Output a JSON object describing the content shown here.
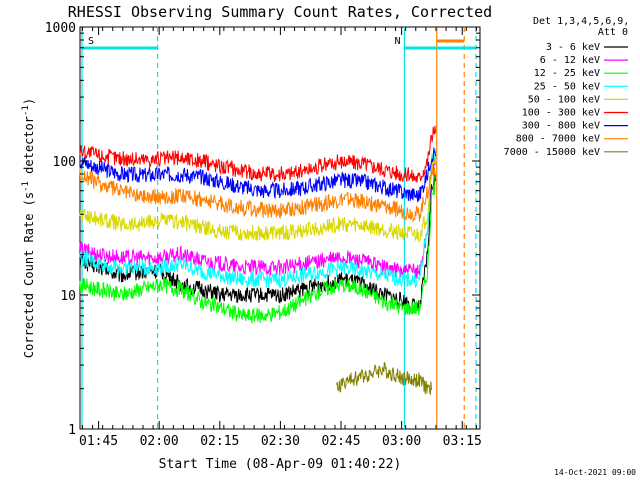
{
  "chart_data": {
    "type": "line",
    "title": "RHESSI Observing Summary Count Rates, Corrected",
    "xlabel": "Start Time (08-Apr-09 01:40:22)",
    "ylabel_main": "Corrected Count Rate (s",
    "ylabel_sup1": "-1",
    "ylabel_mid": " detector",
    "ylabel_sup2": "-1",
    "ylabel_end": ")",
    "y_scale": "log",
    "ylim": [
      1,
      1000
    ],
    "xlim_minutes": [
      0,
      99
    ],
    "x_ticks": [
      {
        "label": "01:45",
        "min": 4.6
      },
      {
        "label": "02:00",
        "min": 19.6
      },
      {
        "label": "02:15",
        "min": 34.6
      },
      {
        "label": "02:30",
        "min": 49.6
      },
      {
        "label": "02:45",
        "min": 64.6
      },
      {
        "label": "03:00",
        "min": 79.6
      },
      {
        "label": "03:15",
        "min": 94.6
      }
    ],
    "y_ticks": [
      {
        "label": "1",
        "val": 1
      },
      {
        "label": "10",
        "val": 10
      },
      {
        "label": "100",
        "val": 100
      },
      {
        "label": "1000",
        "val": 1000
      }
    ],
    "legend_header": [
      "Det 1,3,4,5,6,9,",
      "Att 0"
    ],
    "legend_position": "right",
    "timestamp": "14-Oct-2021 09:00",
    "series": [
      {
        "name": "3 - 6 keV",
        "color": "#000000",
        "x": [
          0,
          5,
          10,
          15,
          20,
          25,
          30,
          35,
          40,
          45,
          50,
          55,
          60,
          65,
          70,
          75,
          80,
          84,
          86,
          87,
          88
        ],
        "values": [
          18,
          16,
          14,
          15,
          15,
          12,
          11,
          10,
          10,
          10,
          10,
          11,
          12,
          13,
          12,
          10,
          9,
          8,
          20,
          60,
          80
        ]
      },
      {
        "name": "6 - 12 keV",
        "color": "#ff00ff",
        "x": [
          0,
          5,
          10,
          15,
          20,
          25,
          30,
          35,
          40,
          45,
          50,
          55,
          60,
          65,
          70,
          75,
          80,
          84,
          86,
          87,
          88
        ],
        "values": [
          22,
          20,
          19,
          19,
          19,
          20,
          18,
          17,
          16,
          16,
          16,
          17,
          18,
          19,
          18,
          16,
          15,
          15,
          30,
          80,
          100
        ]
      },
      {
        "name": "12 - 25 keV",
        "color": "#00ff00",
        "x": [
          0,
          5,
          10,
          15,
          20,
          25,
          30,
          35,
          40,
          45,
          50,
          55,
          60,
          65,
          70,
          75,
          80,
          84,
          86,
          87,
          88
        ],
        "values": [
          12,
          11,
          10,
          11,
          12,
          11,
          9,
          8,
          7,
          7,
          7.5,
          9,
          11,
          12,
          11,
          9,
          8,
          8,
          15,
          50,
          70
        ]
      },
      {
        "name": "25 - 50 keV",
        "color": "#00ffff",
        "x": [
          0,
          5,
          10,
          15,
          20,
          25,
          30,
          35,
          40,
          45,
          50,
          55,
          60,
          65,
          70,
          75,
          80,
          84,
          86,
          87,
          88
        ],
        "values": [
          19,
          17,
          16,
          16,
          16,
          17,
          15,
          14,
          13,
          13,
          13,
          14,
          15,
          16,
          15,
          14,
          13,
          13,
          30,
          100,
          120
        ]
      },
      {
        "name": "50 - 100 keV",
        "color": "#d8d800",
        "x": [
          0,
          5,
          10,
          15,
          20,
          25,
          30,
          35,
          40,
          45,
          50,
          55,
          60,
          65,
          70,
          75,
          80,
          84,
          86,
          87,
          88
        ],
        "values": [
          40,
          37,
          34,
          34,
          36,
          35,
          32,
          30,
          29,
          29,
          29,
          30,
          32,
          34,
          33,
          31,
          29,
          28,
          40,
          90,
          110
        ]
      },
      {
        "name": "100 - 300 keV",
        "color": "#ff0000",
        "x": [
          0,
          5,
          10,
          15,
          20,
          25,
          30,
          35,
          40,
          45,
          50,
          55,
          60,
          65,
          70,
          75,
          80,
          84,
          86,
          87,
          88
        ],
        "values": [
          120,
          110,
          105,
          103,
          104,
          106,
          100,
          92,
          85,
          80,
          80,
          84,
          92,
          100,
          97,
          88,
          80,
          75,
          100,
          150,
          170
        ]
      },
      {
        "name": "300 - 800 keV",
        "color": "#0000ff",
        "x": [
          0,
          5,
          10,
          15,
          20,
          25,
          30,
          35,
          40,
          45,
          50,
          55,
          60,
          65,
          70,
          75,
          80,
          84,
          86,
          87,
          88
        ],
        "values": [
          100,
          88,
          80,
          78,
          79,
          80,
          76,
          70,
          64,
          60,
          60,
          63,
          68,
          72,
          70,
          64,
          58,
          55,
          80,
          110,
          120
        ]
      },
      {
        "name": "800 - 7000 keV",
        "color": "#ff8000",
        "x": [
          0,
          5,
          10,
          15,
          20,
          25,
          30,
          35,
          40,
          45,
          50,
          55,
          60,
          65,
          70,
          75,
          80,
          84,
          86,
          87,
          88
        ],
        "values": [
          80,
          67,
          60,
          55,
          54,
          55,
          52,
          48,
          45,
          43,
          43,
          45,
          48,
          52,
          50,
          46,
          42,
          40,
          60,
          80,
          90
        ]
      },
      {
        "name": "7000 - 15000 keV",
        "color": "#808000",
        "x": [
          63.5,
          65,
          70,
          75,
          80,
          84,
          86,
          87
        ],
        "values": [
          2,
          2.2,
          2.5,
          2.8,
          2.4,
          2.3,
          2.0,
          2.0
        ]
      }
    ],
    "attenuator_segments": [
      {
        "label": "S",
        "x_start": 0.5,
        "x_end": 19.2,
        "color": "#00e5e5"
      },
      {
        "label": "N",
        "x_start": 80.3,
        "x_end": 98.0,
        "color": "#00e5e5"
      }
    ],
    "flag_segments": [
      {
        "x_start": 88.3,
        "x_end": 95.1,
        "color": "#ff8000"
      }
    ],
    "vertical_lines": [
      {
        "x": 0.5,
        "style": "solid",
        "color": "#00e5e5"
      },
      {
        "x": 19.2,
        "style": "dashed",
        "color": "#00e5e5"
      },
      {
        "x": 80.3,
        "style": "solid",
        "color": "#00e5e5"
      },
      {
        "x": 98.0,
        "style": "dashed",
        "color": "#00e5e5"
      },
      {
        "x": 88.3,
        "style": "solid",
        "color": "#ff8000"
      },
      {
        "x": 95.1,
        "style": "dashed",
        "color": "#ff8000"
      }
    ]
  }
}
